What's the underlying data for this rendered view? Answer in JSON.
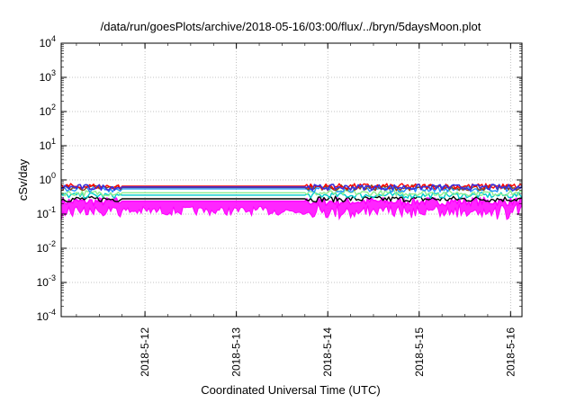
{
  "chart_data": {
    "type": "line",
    "title": "/data/run/goesPlots/archive/2018-05-16/03:00/flux/../bryn/5daysMoon.plot",
    "xlabel": "Coordinated Universal Time (UTC)",
    "ylabel": "cSv/day",
    "yscale": "log",
    "ylim": [
      0.0001,
      10000
    ],
    "y_ticks": [
      {
        "base": "10",
        "exp": "-4"
      },
      {
        "base": "10",
        "exp": "-3"
      },
      {
        "base": "10",
        "exp": "-2"
      },
      {
        "base": "10",
        "exp": "-1"
      },
      {
        "base": "10",
        "exp": "0"
      },
      {
        "base": "10",
        "exp": "1"
      },
      {
        "base": "10",
        "exp": "2"
      },
      {
        "base": "10",
        "exp": "3"
      },
      {
        "base": "10",
        "exp": "4"
      }
    ],
    "xlim": [
      "2018-05-11 02:00",
      "2018-05-16 03:00"
    ],
    "x_ticks": [
      "2018-5-12",
      "2018-5-13",
      "2018-5-14",
      "2018-5-15",
      "2018-5-16"
    ],
    "grid": true,
    "gap": [
      "2018-05-11 18:00",
      "2018-05-13 18:00"
    ],
    "series": [
      {
        "color": "#ff00ff",
        "gap_value": 0.24,
        "fill": true
      },
      {
        "color": "#000000",
        "gap_value": 0.28
      },
      {
        "color": "#00cccc",
        "gap_value": 0.36
      },
      {
        "color": "#90ee90",
        "gap_value": 0.42
      },
      {
        "color": "#1e90ff",
        "gap_value": 0.55
      },
      {
        "color": "#8b4513",
        "gap_value": 0.6
      },
      {
        "color": "#ff0000",
        "gap_value": 0.66
      },
      {
        "color": "#3b2fd9",
        "gap_value": 0.62
      }
    ]
  }
}
